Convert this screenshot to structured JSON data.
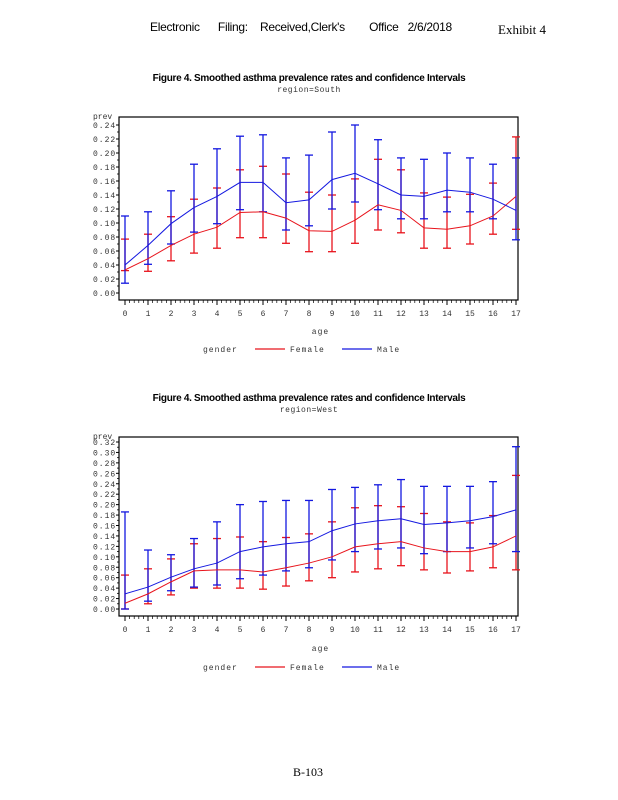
{
  "header": {
    "parts": [
      "Electronic",
      "Filing:",
      "Received,Clerk's",
      "Office",
      "2/6/2018"
    ],
    "exhibit": "Exhibit 4"
  },
  "footer": {
    "page_label": "B-103"
  },
  "chart_data": [
    {
      "type": "line",
      "title": "Figure 4. Smoothed asthma prevalence rates and confidence Intervals",
      "subtitle": "region=South",
      "xlabel": "age",
      "ylabel": "prev",
      "x": [
        0,
        1,
        2,
        3,
        4,
        5,
        6,
        7,
        8,
        9,
        10,
        11,
        12,
        13,
        14,
        15,
        16,
        17
      ],
      "xlim": [
        0,
        17
      ],
      "ylim": [
        0,
        0.24
      ],
      "yticks": [
        0.0,
        0.02,
        0.04,
        0.06,
        0.08,
        0.1,
        0.12,
        0.14,
        0.16,
        0.18,
        0.2,
        0.22,
        0.24
      ],
      "ytick_labels": [
        "0.00",
        "0.02",
        "0.04",
        "0.06",
        "0.08",
        "0.10",
        "0.12",
        "0.14",
        "0.16",
        "0.18",
        "0.20",
        "0.22",
        "0.24"
      ],
      "grid": false,
      "legend": {
        "title": "gender",
        "placement": "bottom"
      },
      "series": [
        {
          "name": "Female",
          "color": "#e8141c",
          "values": [
            0.033,
            0.049,
            0.068,
            0.084,
            0.094,
            0.115,
            0.116,
            0.107,
            0.089,
            0.088,
            0.104,
            0.126,
            0.118,
            0.093,
            0.091,
            0.096,
            0.11,
            0.138
          ],
          "upper": [
            0.077,
            0.084,
            0.109,
            0.134,
            0.15,
            0.176,
            0.181,
            0.17,
            0.144,
            0.14,
            0.163,
            0.191,
            0.176,
            0.143,
            0.137,
            0.141,
            0.157,
            0.223
          ],
          "lower": [
            0.032,
            0.031,
            0.046,
            0.057,
            0.064,
            0.079,
            0.079,
            0.071,
            0.059,
            0.059,
            0.071,
            0.09,
            0.086,
            0.064,
            0.064,
            0.07,
            0.084,
            0.091
          ]
        },
        {
          "name": "Male",
          "color": "#1418e0",
          "values": [
            0.04,
            0.068,
            0.099,
            0.122,
            0.138,
            0.158,
            0.158,
            0.129,
            0.133,
            0.162,
            0.171,
            0.156,
            0.14,
            0.138,
            0.147,
            0.144,
            0.134,
            0.118
          ],
          "upper": [
            0.11,
            0.116,
            0.146,
            0.184,
            0.206,
            0.224,
            0.226,
            0.193,
            0.197,
            0.23,
            0.24,
            0.219,
            0.193,
            0.191,
            0.2,
            0.193,
            0.184,
            0.193
          ],
          "lower": [
            0.014,
            0.041,
            0.07,
            0.087,
            0.099,
            0.119,
            0.116,
            0.09,
            0.096,
            0.12,
            0.13,
            0.119,
            0.106,
            0.106,
            0.116,
            0.116,
            0.106,
            0.076
          ]
        }
      ]
    },
    {
      "type": "line",
      "title": "Figure 4. Smoothed asthma prevalence rates and confidence Intervals",
      "subtitle": "region=West",
      "xlabel": "age",
      "ylabel": "prev",
      "x": [
        0,
        1,
        2,
        3,
        4,
        5,
        6,
        7,
        8,
        9,
        10,
        11,
        12,
        13,
        14,
        15,
        16,
        17
      ],
      "xlim": [
        0,
        17
      ],
      "ylim": [
        0,
        0.32
      ],
      "yticks": [
        0.0,
        0.02,
        0.04,
        0.06,
        0.08,
        0.1,
        0.12,
        0.14,
        0.16,
        0.18,
        0.2,
        0.22,
        0.24,
        0.26,
        0.28,
        0.3,
        0.32
      ],
      "ytick_labels": [
        "0.00",
        "0.02",
        "0.04",
        "0.06",
        "0.08",
        "0.10",
        "0.12",
        "0.14",
        "0.16",
        "0.18",
        "0.20",
        "0.22",
        "0.24",
        "0.26",
        "0.28",
        "0.30",
        "0.32"
      ],
      "grid": false,
      "legend": {
        "title": "gender",
        "placement": "bottom"
      },
      "series": [
        {
          "name": "Female",
          "color": "#e8141c",
          "values": [
            0.011,
            0.029,
            0.052,
            0.073,
            0.075,
            0.075,
            0.071,
            0.079,
            0.088,
            0.1,
            0.119,
            0.125,
            0.129,
            0.117,
            0.11,
            0.11,
            0.119,
            0.14
          ],
          "upper": [
            0.065,
            0.077,
            0.096,
            0.125,
            0.135,
            0.138,
            0.129,
            0.137,
            0.144,
            0.167,
            0.194,
            0.198,
            0.196,
            0.183,
            0.167,
            0.165,
            0.179,
            0.256
          ],
          "lower": [
            0.0,
            0.01,
            0.027,
            0.04,
            0.04,
            0.04,
            0.038,
            0.044,
            0.054,
            0.06,
            0.071,
            0.077,
            0.083,
            0.075,
            0.069,
            0.073,
            0.079,
            0.075
          ]
        },
        {
          "name": "Male",
          "color": "#1418e0",
          "values": [
            0.029,
            0.042,
            0.061,
            0.077,
            0.088,
            0.11,
            0.119,
            0.125,
            0.129,
            0.15,
            0.163,
            0.169,
            0.173,
            0.162,
            0.165,
            0.169,
            0.177,
            0.19
          ],
          "upper": [
            0.186,
            0.113,
            0.104,
            0.135,
            0.167,
            0.2,
            0.206,
            0.208,
            0.208,
            0.229,
            0.233,
            0.238,
            0.248,
            0.235,
            0.235,
            0.235,
            0.244,
            0.311
          ],
          "lower": [
            0.0,
            0.015,
            0.035,
            0.042,
            0.046,
            0.058,
            0.065,
            0.073,
            0.079,
            0.094,
            0.11,
            0.115,
            0.117,
            0.106,
            0.11,
            0.117,
            0.125,
            0.11
          ]
        }
      ]
    }
  ]
}
